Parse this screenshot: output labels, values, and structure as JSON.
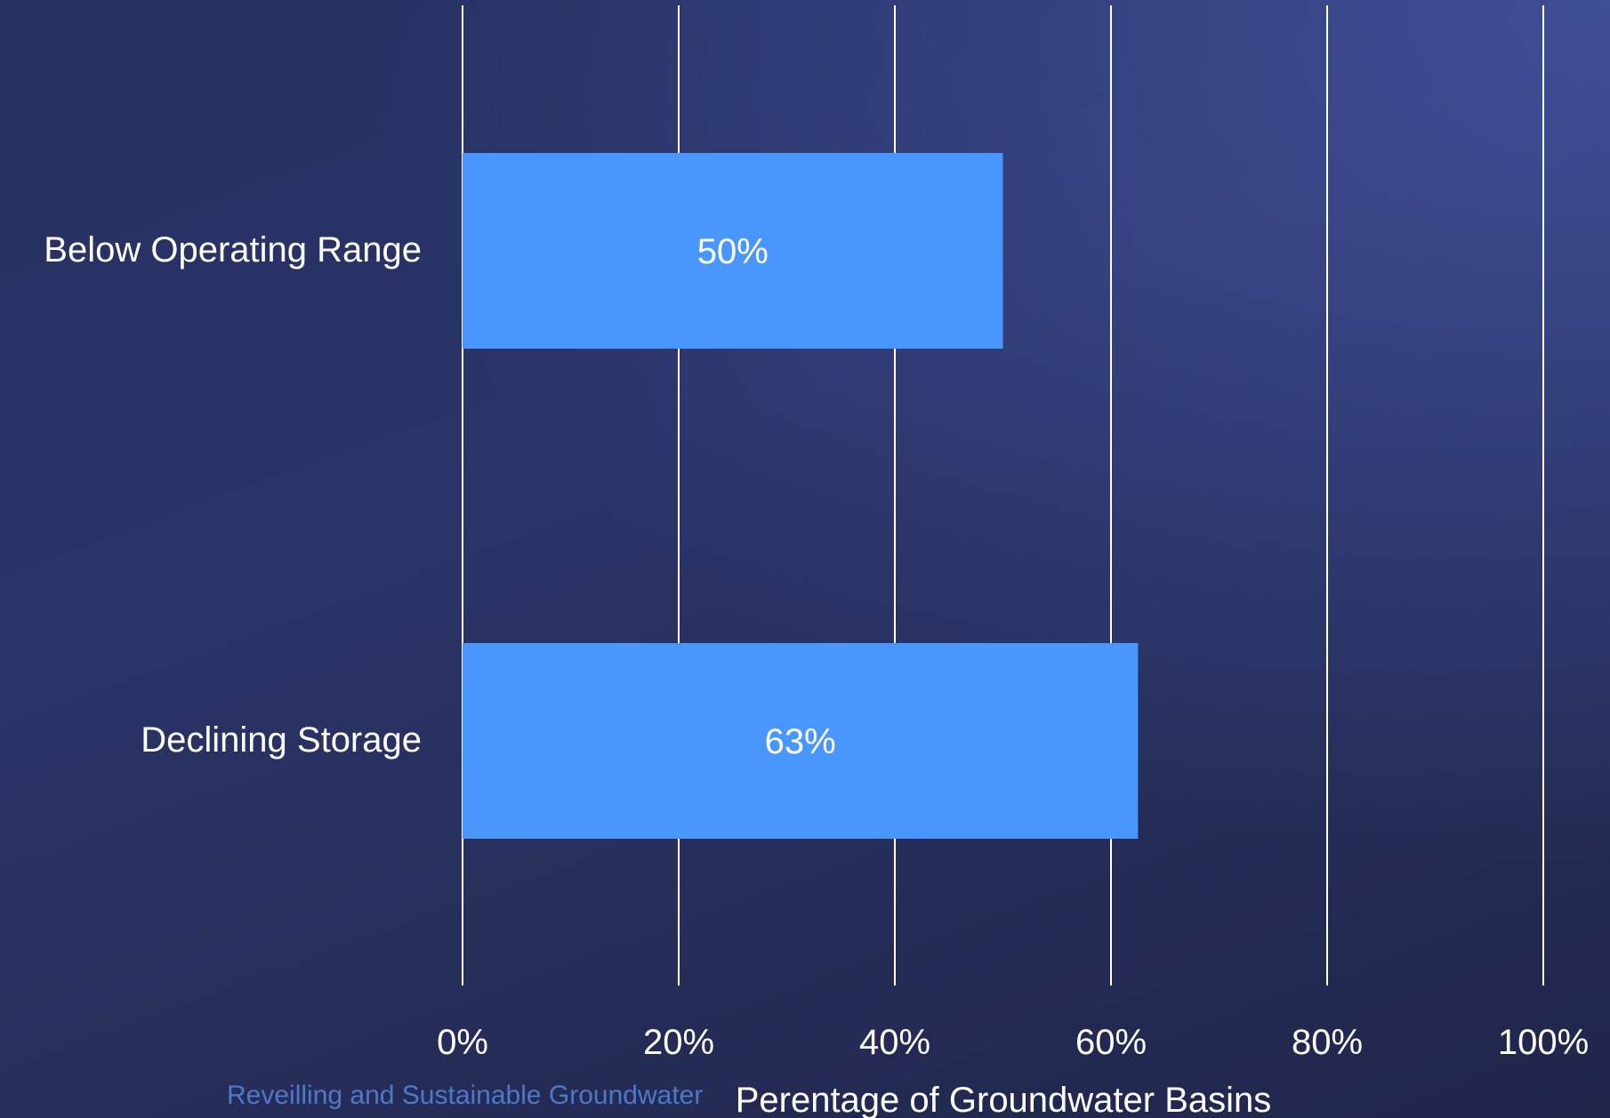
{
  "chart_data": {
    "type": "bar",
    "orientation": "horizontal",
    "categories": [
      "Below Operating Range",
      "Declining Storage"
    ],
    "values": [
      0.5,
      0.625
    ],
    "data_labels": [
      "50%",
      "63%"
    ],
    "xlabel": "Perentage of Groundwater Basins",
    "xlim": [
      0,
      1
    ],
    "xticks": [
      0,
      0.2,
      0.4,
      0.6,
      0.8,
      1.0
    ],
    "xtick_labels": [
      "0%",
      "20%",
      "40%",
      "60%",
      "80%",
      "100%"
    ],
    "grid": "vertical",
    "legend": "none",
    "bar_color": "#4a96ff",
    "grid_color": "#ffffff"
  },
  "footer": {
    "text": "Reveilling and Sustainable Groundwater"
  }
}
